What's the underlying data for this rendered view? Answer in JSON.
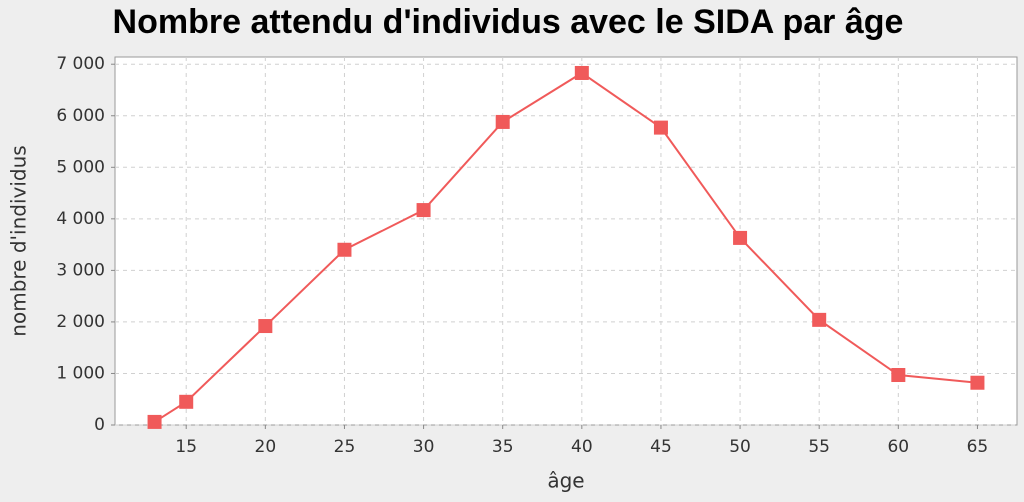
{
  "chart_data": {
    "type": "line",
    "title": "Nombre attendu d'individus avec le SIDA par âge",
    "x_label": "âge",
    "y_label": "nombre d'individus",
    "series": [
      {
        "color": "#f05a5a",
        "x": [
          13,
          15,
          20,
          25,
          30,
          35,
          40,
          45,
          50,
          55,
          60,
          65
        ],
        "values": [
          60,
          450,
          1920,
          3400,
          4170,
          5880,
          6830,
          5770,
          3630,
          2040,
          970,
          820
        ]
      }
    ],
    "xlim": [
      10.5,
      67.5
    ],
    "xticks": [
      15,
      20,
      25,
      30,
      35,
      40,
      45,
      50,
      55,
      60,
      65
    ],
    "ylim": [
      0,
      7140
    ],
    "yticks": [
      0,
      {
        "value": 1000,
        "label": "1 000"
      },
      {
        "value": 2000,
        "label": "2 000"
      },
      {
        "value": 3000,
        "label": "3 000"
      },
      {
        "value": 4000,
        "label": "4 000"
      },
      {
        "value": 5000,
        "label": "5 000"
      },
      {
        "value": 6000,
        "label": "6 000"
      },
      {
        "value": 7000,
        "label": "7 000"
      }
    ],
    "grid": true
  }
}
